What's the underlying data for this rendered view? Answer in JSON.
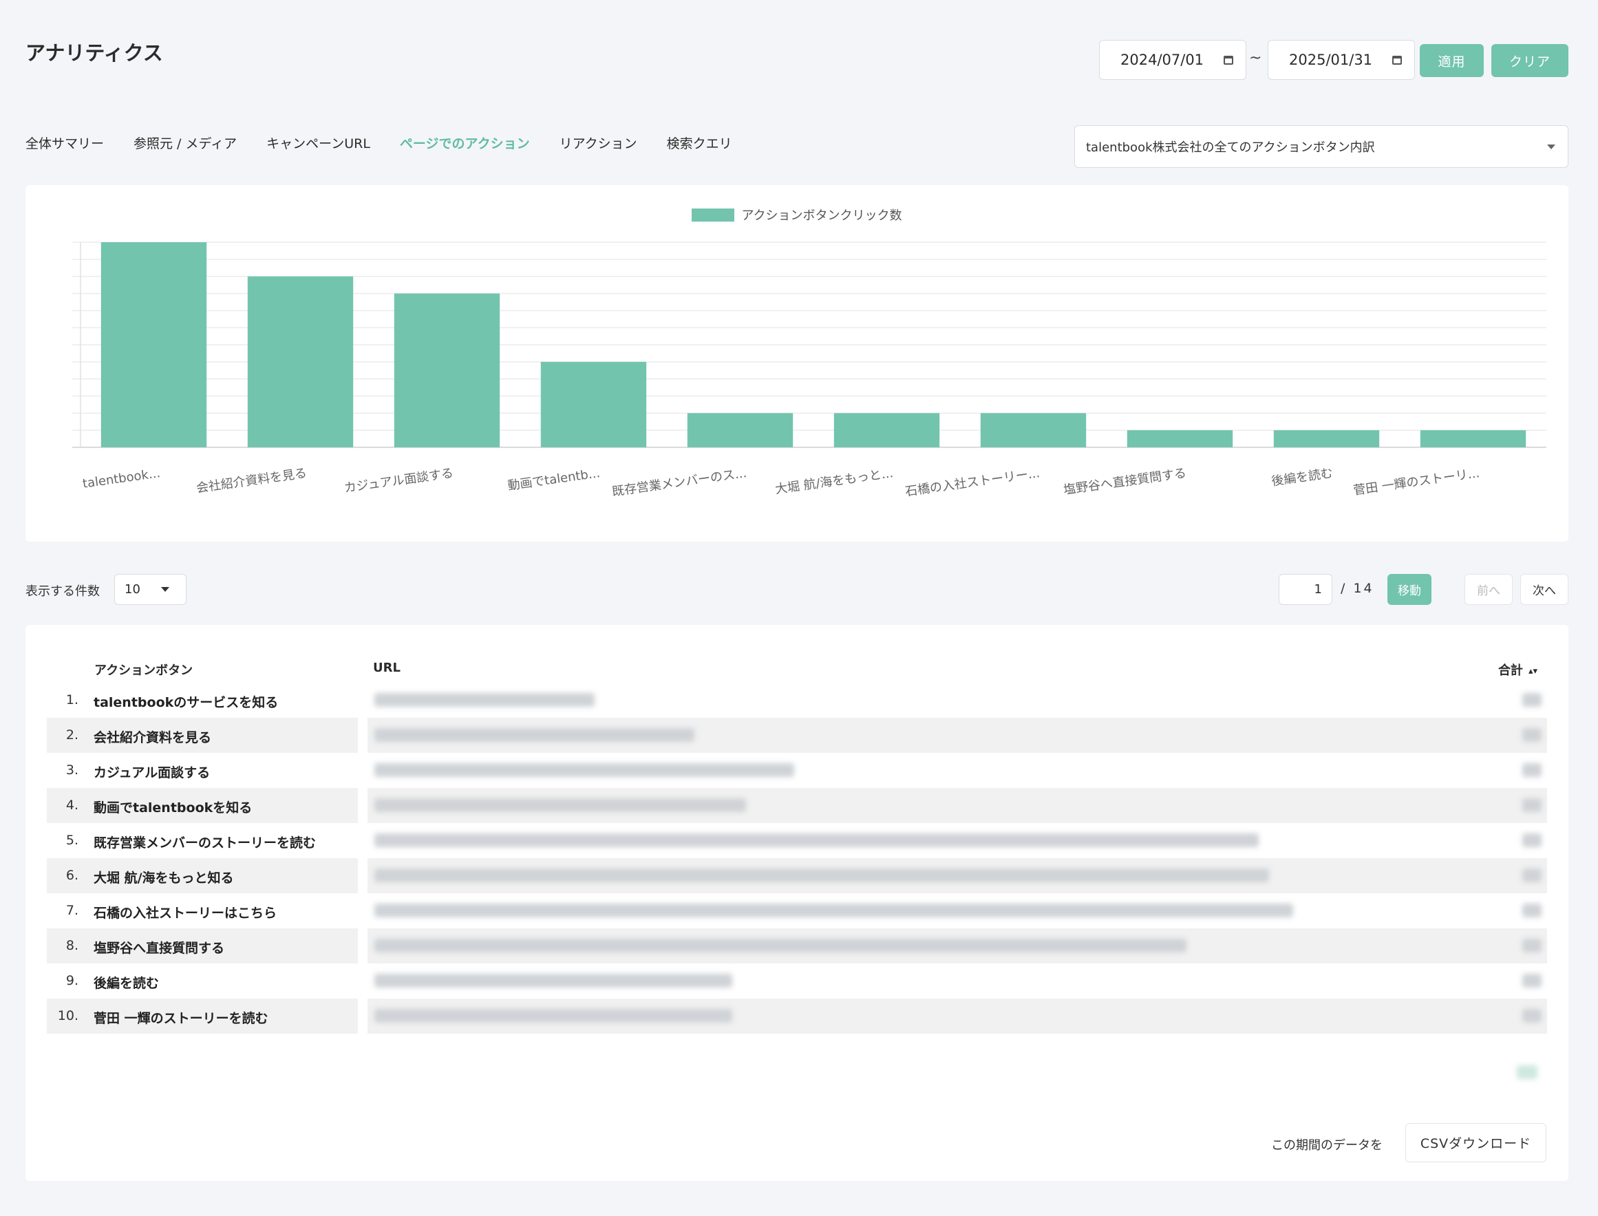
{
  "header": {
    "title": "アナリティクス",
    "date_from": "2024/07/01",
    "date_to": "2025/01/31",
    "separator": "~",
    "apply_label": "適用",
    "clear_label": "クリア"
  },
  "tabs": [
    {
      "label": "全体サマリー",
      "active": false
    },
    {
      "label": "参照元 / メディア",
      "active": false
    },
    {
      "label": "キャンペーンURL",
      "active": false
    },
    {
      "label": "ページでのアクション",
      "active": true
    },
    {
      "label": "リアクション",
      "active": false
    },
    {
      "label": "検索クエリ",
      "active": false
    }
  ],
  "filter": {
    "selected": "talentbook株式会社の全てのアクションボタン内訳"
  },
  "chart_data": {
    "type": "bar",
    "legend": "アクションボタンクリック数",
    "color": "#72c4ad",
    "categories": [
      "talentbook...",
      "会社紹介資料を見る",
      "カジュアル面談する",
      "動画でtalentb...",
      "既存営業メンバーのス...",
      "大堀 航/海をもっと...",
      "石橋の入社ストーリー...",
      "塩野谷へ直接質問する",
      "後編を読む",
      "菅田 一輝のストーリ..."
    ],
    "values": [
      12,
      10,
      9,
      5,
      2,
      2,
      2,
      1,
      1,
      1
    ],
    "ylim": [
      0,
      12
    ],
    "grid": true,
    "legend_position": "top"
  },
  "pagination": {
    "per_page_label": "表示する件数",
    "per_page_value": "10",
    "current_page": "1",
    "total_pages": "/ 14",
    "move_label": "移動",
    "prev_label": "前へ",
    "next_label": "次へ"
  },
  "table": {
    "col_action": "アクションボタン",
    "col_url": "URL",
    "col_total": "合計",
    "rows": [
      {
        "num": "1.",
        "label": "talentbookのサービスを知る"
      },
      {
        "num": "2.",
        "label": "会社紹介資料を見る"
      },
      {
        "num": "3.",
        "label": "カジュアル面談する"
      },
      {
        "num": "4.",
        "label": "動画でtalentbookを知る"
      },
      {
        "num": "5.",
        "label": "既存営業メンバーのストーリーを読む"
      },
      {
        "num": "6.",
        "label": "大堀 航/海をもっと知る"
      },
      {
        "num": "7.",
        "label": "石橋の入社ストーリーはこちら"
      },
      {
        "num": "8.",
        "label": "塩野谷へ直接質問する"
      },
      {
        "num": "9.",
        "label": "後編を読む"
      },
      {
        "num": "10.",
        "label": "菅田 一輝のストーリーを読む"
      }
    ]
  },
  "footer": {
    "csv_note": "この期間のデータを",
    "csv_button": "CSVダウンロード"
  }
}
